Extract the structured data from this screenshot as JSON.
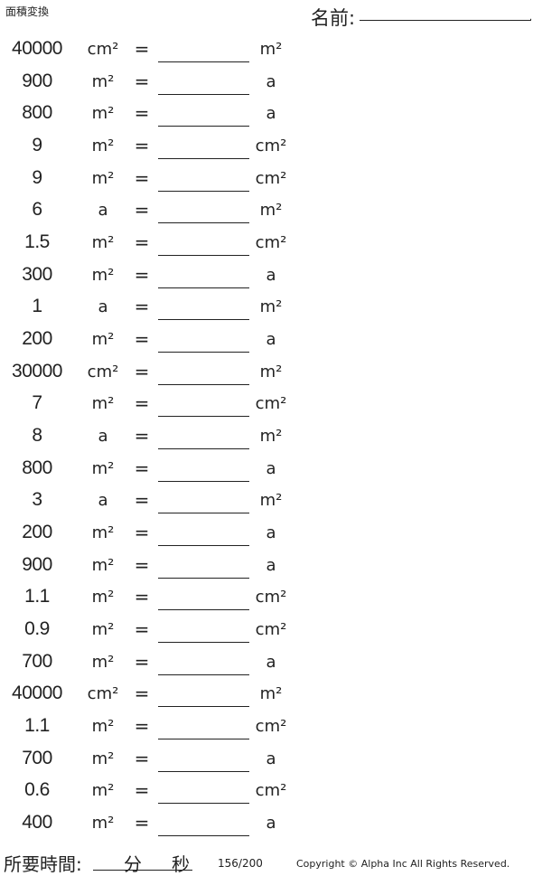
{
  "header": {
    "title": "面積変換",
    "name_label": "名前:"
  },
  "problems": [
    {
      "value": "40000",
      "from": "cm²",
      "to": "m²"
    },
    {
      "value": "900",
      "from": "m²",
      "to": "a"
    },
    {
      "value": "800",
      "from": "m²",
      "to": "a"
    },
    {
      "value": "9",
      "from": "m²",
      "to": "cm²"
    },
    {
      "value": "9",
      "from": "m²",
      "to": "cm²"
    },
    {
      "value": "6",
      "from": "a",
      "to": "m²"
    },
    {
      "value": "1.5",
      "from": "m²",
      "to": "cm²"
    },
    {
      "value": "300",
      "from": "m²",
      "to": "a"
    },
    {
      "value": "1",
      "from": "a",
      "to": "m²"
    },
    {
      "value": "200",
      "from": "m²",
      "to": "a"
    },
    {
      "value": "30000",
      "from": "cm²",
      "to": "m²"
    },
    {
      "value": "7",
      "from": "m²",
      "to": "cm²"
    },
    {
      "value": "8",
      "from": "a",
      "to": "m²"
    },
    {
      "value": "800",
      "from": "m²",
      "to": "a"
    },
    {
      "value": "3",
      "from": "a",
      "to": "m²"
    },
    {
      "value": "200",
      "from": "m²",
      "to": "a"
    },
    {
      "value": "900",
      "from": "m²",
      "to": "a"
    },
    {
      "value": "1.1",
      "from": "m²",
      "to": "cm²"
    },
    {
      "value": "0.9",
      "from": "m²",
      "to": "cm²"
    },
    {
      "value": "700",
      "from": "m²",
      "to": "a"
    },
    {
      "value": "40000",
      "from": "cm²",
      "to": "m²"
    },
    {
      "value": "1.1",
      "from": "m²",
      "to": "cm²"
    },
    {
      "value": "700",
      "from": "m²",
      "to": "a"
    },
    {
      "value": "0.6",
      "from": "m²",
      "to": "cm²"
    },
    {
      "value": "400",
      "from": "m²",
      "to": "a"
    }
  ],
  "equals": "=",
  "footer": {
    "time_label": "所要時間:",
    "minutes": "分",
    "seconds": "秒",
    "page": "156/200",
    "copyright": "Copyright © Alpha Inc All Rights Reserved."
  }
}
